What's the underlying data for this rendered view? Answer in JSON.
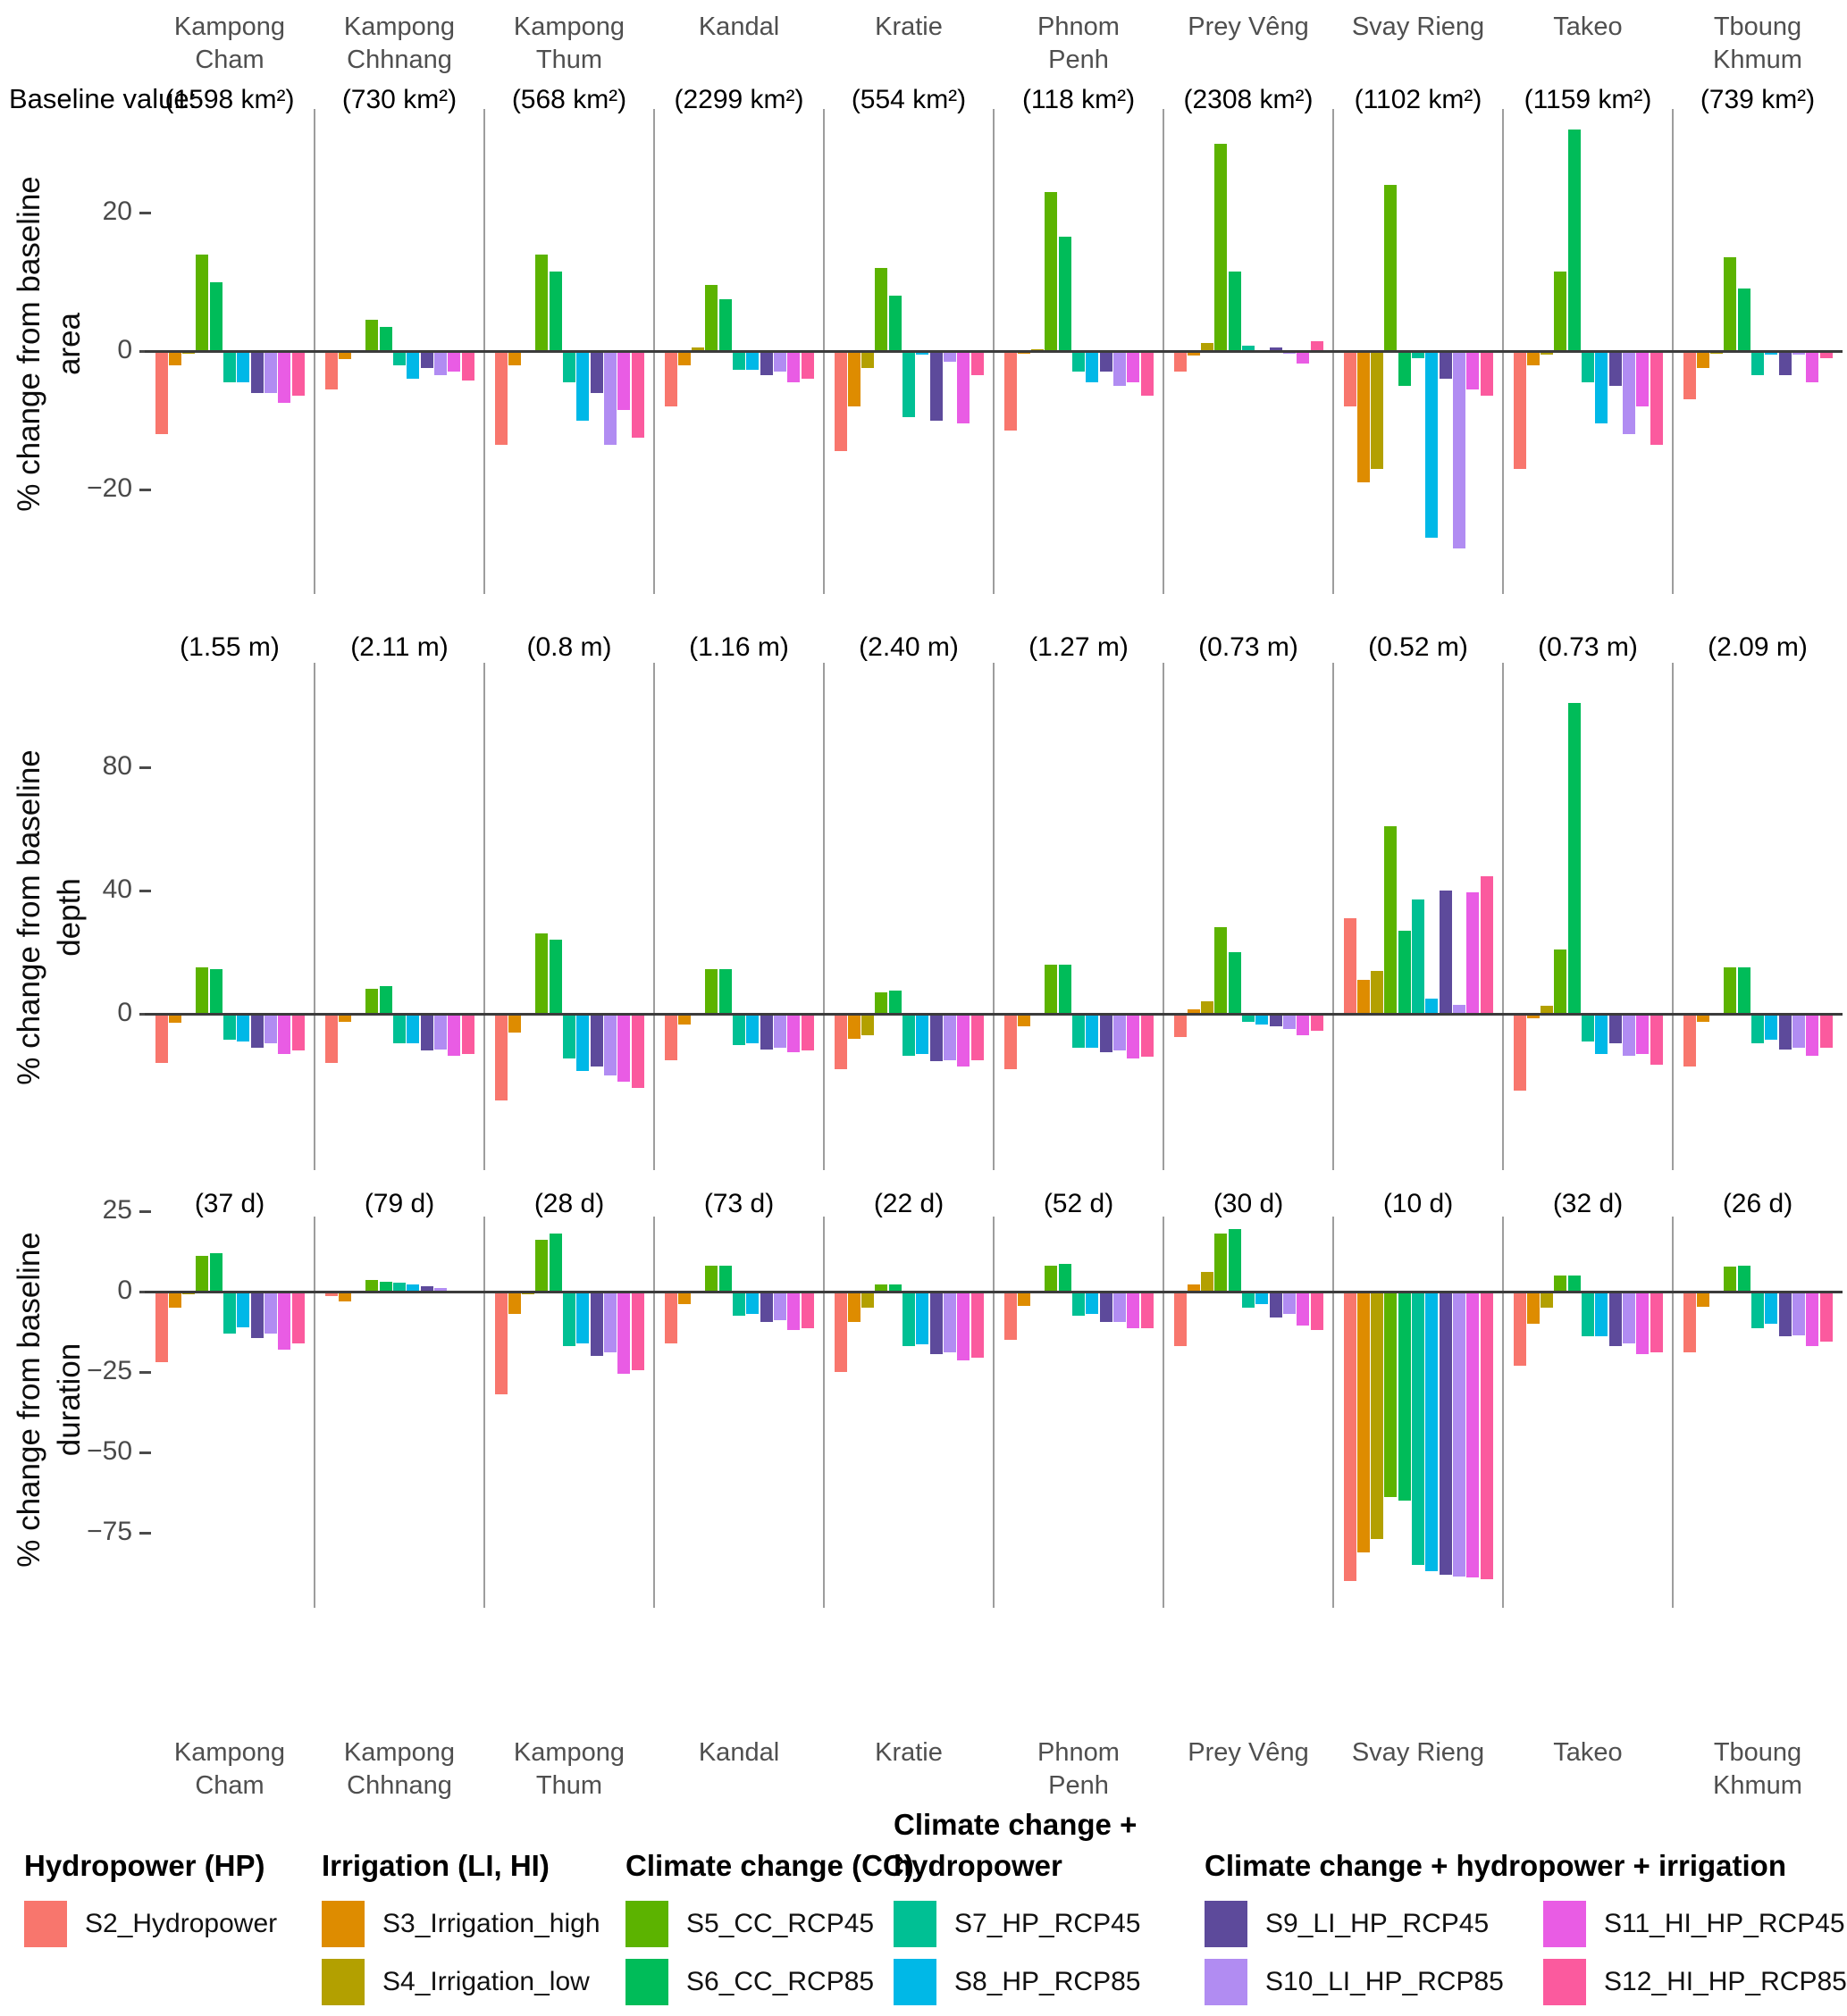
{
  "header": {
    "baseline_caption": "Baseline value:"
  },
  "provinces": [
    {
      "name": "Kampong Cham",
      "display": "Kampong\nCham"
    },
    {
      "name": "Kampong Chhnang",
      "display": "Kampong\nChhnang"
    },
    {
      "name": "Kampong Thum",
      "display": "Kampong\nThum"
    },
    {
      "name": "Kandal",
      "display": "Kandal"
    },
    {
      "name": "Kratie",
      "display": "Kratie"
    },
    {
      "name": "Phnom Penh",
      "display": "Phnom\nPenh"
    },
    {
      "name": "Prey Vêng",
      "display": "Prey Vêng"
    },
    {
      "name": "Svay Rieng",
      "display": "Svay Rieng"
    },
    {
      "name": "Takeo",
      "display": "Takeo"
    },
    {
      "name": "Tboung Khmum",
      "display": "Tboung\nKhmum"
    }
  ],
  "scenarios": [
    {
      "label": "S2_Hydropower",
      "color": "#F8766D"
    },
    {
      "label": "S3_Irrigation_high",
      "color": "#DE8C00"
    },
    {
      "label": "S4_Irrigation_low",
      "color": "#B3A000"
    },
    {
      "label": "S5_CC_RCP45",
      "color": "#5CB300"
    },
    {
      "label": "S6_CC_RCP85",
      "color": "#00BC59"
    },
    {
      "label": "S7_HP_RCP45",
      "color": "#00C094"
    },
    {
      "label": "S8_HP_RCP85",
      "color": "#00B8E7"
    },
    {
      "label": "S9_LI_HP_RCP45",
      "color": "#5D4A9B"
    },
    {
      "label": "S10_LI_HP_RCP85",
      "color": "#B18CF2"
    },
    {
      "label": "S11_HI_HP_RCP45",
      "color": "#E95CE4"
    },
    {
      "label": "S12_HI_HP_RCP85",
      "color": "#FB5A9E"
    }
  ],
  "chart_data": {
    "type": "bar",
    "grid": "none",
    "legend_position": "bottom",
    "categories": [
      "Kampong Cham",
      "Kampong Chhnang",
      "Kampong Thum",
      "Kandal",
      "Kratie",
      "Phnom Penh",
      "Prey Vêng",
      "Svay Rieng",
      "Takeo",
      "Tboung Khmum"
    ],
    "series_names": [
      "S2_Hydropower",
      "S3_Irrigation_high",
      "S4_Irrigation_low",
      "S5_CC_RCP45",
      "S6_CC_RCP85",
      "S7_HP_RCP45",
      "S8_HP_RCP85",
      "S9_LI_HP_RCP45",
      "S10_LI_HP_RCP85",
      "S11_HI_HP_RCP45",
      "S12_HI_HP_RCP85"
    ],
    "panels": [
      {
        "id": "area",
        "ylabel": "% change from baseline area",
        "ylabel_lines": [
          "% change from baseline",
          "area"
        ],
        "ticks": [
          20,
          0,
          -20
        ],
        "ylim": [
          -31,
          34
        ],
        "baselines": [
          "(1598 km²)",
          "(730 km²)",
          "(568 km²)",
          "(2299 km²)",
          "(554 km²)",
          "(118 km²)",
          "(2308 km²)",
          "(1102 km²)",
          "(1159 km²)",
          "(739 km²)"
        ],
        "values": [
          [
            -12,
            -2,
            -0.4,
            14,
            10,
            -4.5,
            -4.5,
            -6,
            -6,
            -7.5,
            -6.5
          ],
          [
            -5.5,
            -1.2,
            -0.3,
            4.5,
            3.5,
            -2,
            -4,
            -2.5,
            -3.5,
            -3,
            -4.2
          ],
          [
            -13.5,
            -2,
            -0.3,
            14,
            11.5,
            -4.5,
            -10,
            -6,
            -13.5,
            -8.5,
            -12.5
          ],
          [
            -8,
            -2,
            0.5,
            9.5,
            7.5,
            -2.7,
            -2.7,
            -3.5,
            -3,
            -4.5,
            -4
          ],
          [
            -14.5,
            -8,
            -2.5,
            12,
            8,
            -9.5,
            -0.5,
            -10,
            -1.5,
            -10.5,
            -3.5
          ],
          [
            -11.5,
            -0.4,
            0.2,
            23,
            16.5,
            -3,
            -4.5,
            -3,
            -5,
            -4.5,
            -6.5
          ],
          [
            -3,
            -0.6,
            1.2,
            30,
            11.5,
            0.8,
            -0.3,
            0.5,
            -0.4,
            -1.8,
            1.4
          ],
          [
            -8,
            -19,
            -17,
            24,
            -5,
            -1,
            -27,
            -4,
            -28.5,
            -5.5,
            -6.5
          ],
          [
            -17,
            -2,
            -0.5,
            11.5,
            32,
            -4.5,
            -10.5,
            -5,
            -12,
            -8,
            -13.5
          ],
          [
            -7,
            -2.5,
            -0.4,
            13.5,
            9,
            -3.5,
            -0.5,
            -3.5,
            -0.5,
            -4.5,
            -1
          ]
        ]
      },
      {
        "id": "depth",
        "ylabel": "% change from baseline depth",
        "ylabel_lines": [
          "% change from baseline",
          "depth"
        ],
        "ticks": [
          80,
          40,
          0
        ],
        "ylim": [
          -35,
          110
        ],
        "baselines": [
          "(1.55 m)",
          "(2.11 m)",
          "(0.8 m)",
          "(1.16 m)",
          "(2.40 m)",
          "(1.27 m)",
          "(0.73 m)",
          "(0.52 m)",
          "(0.73 m)",
          "(2.09 m)"
        ],
        "values": [
          [
            -16,
            -3,
            -0.5,
            15,
            14.5,
            -8.5,
            -9,
            -11,
            -9.5,
            -13,
            -12
          ],
          [
            -16,
            -2.5,
            -0.3,
            8,
            9,
            -9.5,
            -9.5,
            -12,
            -11.5,
            -13.5,
            -13
          ],
          [
            -28,
            -6,
            -0.5,
            26,
            24,
            -14.5,
            -18.5,
            -17,
            -20,
            -22,
            -24
          ],
          [
            -15,
            -3.5,
            -0.5,
            14.5,
            14.5,
            -10,
            -9.5,
            -11.5,
            -11,
            -12.5,
            -12
          ],
          [
            -18,
            -8,
            -7,
            7,
            7.5,
            -13.5,
            -13,
            -15.5,
            -15,
            -17,
            -15
          ],
          [
            -18,
            -4,
            -0.5,
            16,
            16,
            -11,
            -11,
            -12.5,
            -12,
            -14.5,
            -14
          ],
          [
            -7.5,
            1.5,
            4,
            28,
            20,
            -2.5,
            -3.5,
            -4,
            -5,
            -7,
            -5.5
          ],
          [
            31,
            11,
            14,
            61,
            27,
            37,
            5,
            40,
            3,
            39.5,
            44.5
          ],
          [
            -25,
            -1.5,
            2.5,
            21,
            101,
            -9,
            -13,
            -9.5,
            -13.5,
            -13,
            -16.5
          ],
          [
            -17,
            -2.5,
            -0.3,
            15,
            15,
            -9.5,
            -8.5,
            -11.5,
            -11,
            -13.5,
            -11
          ]
        ]
      },
      {
        "id": "duration",
        "ylabel": "% change from baseline duration",
        "ylabel_lines": [
          "% change from baseline",
          "duration"
        ],
        "ticks": [
          25,
          0,
          -25,
          -50,
          -75
        ],
        "ylim": [
          -93,
          28
        ],
        "baselines": [
          "(37 d)",
          "(79 d)",
          "(28 d)",
          "(73 d)",
          "(22 d)",
          "(52 d)",
          "(30 d)",
          "(10 d)",
          "(32 d)",
          "(26 d)"
        ],
        "values": [
          [
            -22,
            -5,
            -0.8,
            11,
            12,
            -13,
            -11,
            -14.5,
            -13,
            -18,
            -16
          ],
          [
            -1.5,
            -3,
            -0.5,
            3.5,
            3,
            2.8,
            2.2,
            1.7,
            1.2,
            -0.5,
            -0.5
          ],
          [
            -32,
            -7,
            -0.7,
            16,
            18,
            -17,
            -16,
            -20,
            -19,
            -25.5,
            -24.5
          ],
          [
            -16,
            -4,
            -0.5,
            8,
            8,
            -7.5,
            -7,
            -9.5,
            -9,
            -12,
            -11.5
          ],
          [
            -25,
            -9.5,
            -5,
            2.2,
            2.2,
            -17,
            -16.5,
            -19.5,
            -19,
            -21.5,
            -20.5
          ],
          [
            -15,
            -4.5,
            -0.3,
            8,
            8.5,
            -7.5,
            -7,
            -9.5,
            -9.5,
            -11.5,
            -11.5
          ],
          [
            -17,
            2.2,
            6,
            18,
            19.5,
            -5,
            -4,
            -8,
            -7,
            -10.5,
            -12
          ],
          [
            -90,
            -81,
            -77,
            -64,
            -65,
            -85,
            -87,
            -88,
            -88.5,
            -89,
            -89.5
          ],
          [
            -23,
            -10,
            -5,
            5,
            5,
            -14,
            -14,
            -17,
            -16,
            -19.5,
            -19
          ],
          [
            -19,
            -4.7,
            -0.5,
            7.7,
            8,
            -11.5,
            -10,
            -14,
            -13.5,
            -17,
            -15.5
          ]
        ]
      }
    ]
  },
  "legend": {
    "groups": [
      {
        "header_lines": [
          "Hydropower (HP)"
        ],
        "columns": [
          [
            0
          ]
        ]
      },
      {
        "header_lines": [
          "Irrigation (LI, HI)"
        ],
        "columns": [
          [
            1,
            2
          ]
        ]
      },
      {
        "header_lines": [
          "Climate change (CC)"
        ],
        "columns": [
          [
            3,
            4
          ]
        ]
      },
      {
        "header_lines": [
          "Climate change +",
          "hydropower"
        ],
        "columns": [
          [
            5,
            6
          ]
        ]
      },
      {
        "header_lines": [
          "Climate change + hydropower + irrigation"
        ],
        "columns": [
          [
            7,
            8
          ],
          [
            9,
            10
          ]
        ]
      }
    ]
  }
}
